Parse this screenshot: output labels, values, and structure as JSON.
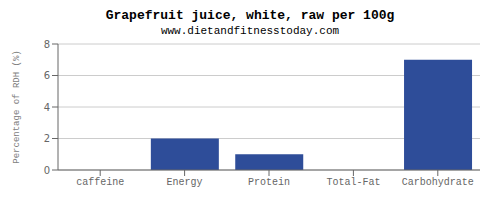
{
  "chart_data": {
    "type": "bar",
    "title": "Grapefruit juice, white, raw per 100g",
    "subtitle": "www.dietandfitnesstoday.com",
    "categories": [
      "caffeine",
      "Energy",
      "Protein",
      "Total-Fat",
      "Carbohydrate"
    ],
    "values": [
      0,
      2,
      1,
      0,
      7
    ],
    "color": "#2e4d99",
    "ylabel": "Percentage of RDH (%)",
    "ylim": [
      0,
      8
    ],
    "yticks": [
      0,
      2,
      4,
      6,
      8
    ],
    "grid": true
  }
}
